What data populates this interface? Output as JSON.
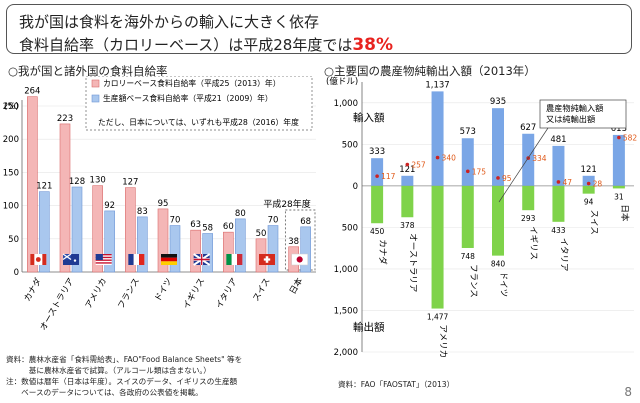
{
  "header": {
    "line1": "我が国は食料を海外からの輸入に大きく依存",
    "line2_prefix": "食料自給率（カロリーベース）は平成28年度では",
    "line2_highlight": "38%"
  },
  "left_title": "○我が国と諸外国の食料自給率",
  "right_title": "○主要国の農産物純輸出入額（2013年）",
  "chart_data": [
    {
      "type": "bar",
      "title": "",
      "ylabel": "(%)",
      "ylim": [
        0,
        250
      ],
      "yticks": [
        0,
        50,
        100,
        150,
        200,
        250
      ],
      "categories": [
        "カナダ",
        "オーストラリア",
        "アメリカ",
        "フランス",
        "ドイツ",
        "イギリス",
        "イタリア",
        "スイス",
        "日本"
      ],
      "flags": [
        "canada-flag-icon",
        "australia-flag-icon",
        "usa-flag-icon",
        "france-flag-icon",
        "germany-flag-icon",
        "uk-flag-icon",
        "italy-flag-icon",
        "switzerland-flag-icon",
        "japan-flag-icon"
      ],
      "series": [
        {
          "name": "カロリーベース食料自給率（平成25（2013）年）",
          "color": "#f4b6b6",
          "values": [
            264,
            223,
            130,
            127,
            95,
            63,
            60,
            50,
            38
          ]
        },
        {
          "name": "生産額ベース食料自給率（平成21（2009）年）",
          "color": "#a9c7ee",
          "values": [
            121,
            128,
            92,
            83,
            70,
            58,
            80,
            70,
            68
          ]
        }
      ],
      "legend_note": "ただし、日本については、いずれも平成28（2016）年度",
      "annotation": "平成28年度",
      "legend_position": "top-right"
    },
    {
      "type": "bar",
      "title": "",
      "ylabel": "(億ドル)",
      "ylim": [
        -2000,
        1250
      ],
      "yticks": [
        1000,
        500,
        0,
        -500,
        -1000,
        -1500,
        -2000
      ],
      "ytick_labels": [
        "1,000",
        "500",
        "0",
        "500",
        "1,000",
        "1,500",
        "2,000"
      ],
      "categories": [
        "カナダ",
        "オーストラリア",
        "アメリカ",
        "フランス",
        "ドイツ",
        "イギリス",
        "イタリア",
        "スイス",
        "日本"
      ],
      "series": [
        {
          "name": "輸入額",
          "color": "#7aa6e6",
          "values": [
            333,
            121,
            1137,
            573,
            935,
            627,
            481,
            121,
            613
          ]
        },
        {
          "name": "輸出額",
          "color": "#7fd34a",
          "values": [
            -450,
            -378,
            -1477,
            -748,
            -840,
            -293,
            -433,
            -94,
            -31
          ]
        },
        {
          "name": "農産物純輸入額又は純輸出額",
          "color": "#cc2222",
          "values": [
            117,
            257,
            340,
            175,
            95,
            334,
            47,
            28,
            582
          ]
        }
      ],
      "label_import": "輸入額",
      "label_export": "輸出額",
      "callout": "農産物純輸入額\n又は純輸出額"
    }
  ],
  "footnotes": {
    "left": [
      "資料：農林水産省「食料需給表」、FAO\"Food Balance Sheets\" 等を",
      "　　　基に農林水産省で試算。（アルコール類は含まない。）",
      "注：数値は暦年（日本は年度）。スイスのデータ、イギリスの生産額",
      "　　ベースのデータについては、各政府の公表値を掲載。"
    ],
    "right": "資料：FAO「FAOSTAT」（2013）"
  },
  "page_number": "8"
}
